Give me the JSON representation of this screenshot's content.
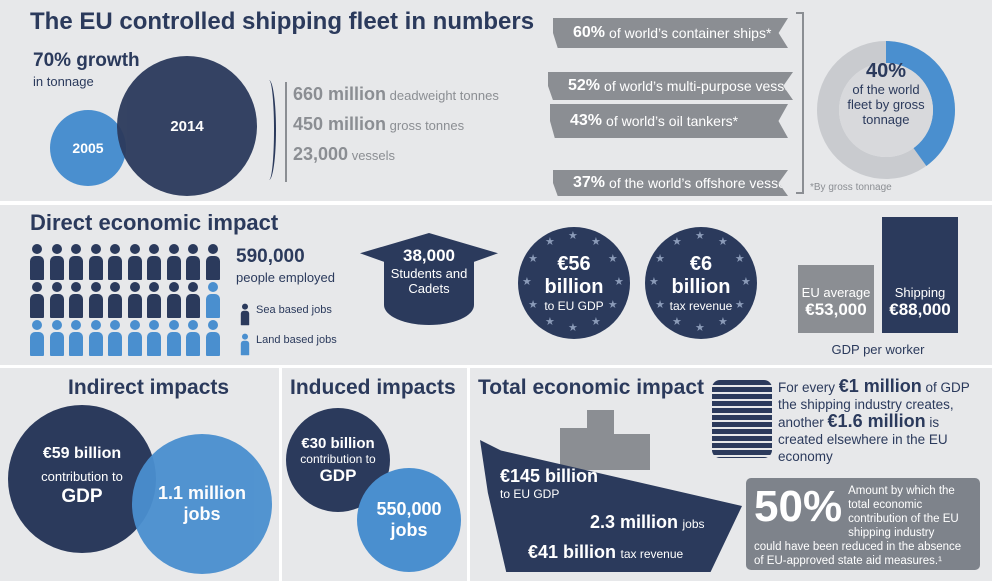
{
  "colors": {
    "navy": "#2b3a5c",
    "blue": "#4a8fcf",
    "gray": "#8b8e93",
    "background": "#e7e8ea"
  },
  "fleet": {
    "title": "The EU controlled shipping fleet in numbers",
    "growth": "70% growth",
    "growth_sub": "in tonnage",
    "year_old": "2005",
    "year_new": "2014",
    "stats": [
      {
        "value": "660 million",
        "label": "deadweight tonnes"
      },
      {
        "value": "450 million",
        "label": "gross tonnes"
      },
      {
        "value": "23,000",
        "label": "vessels"
      }
    ],
    "ships": [
      {
        "value": "60%",
        "label": "of world’s container ships*"
      },
      {
        "value": "52%",
        "label": "of world’s multi-purpose vessels*"
      },
      {
        "value": "43%",
        "label": "of world’s oil tankers*"
      },
      {
        "value": "37%",
        "label": "of the world’s offshore vessels*"
      }
    ],
    "donut": {
      "value": "40%",
      "label": "of the world fleet by gross tonnage",
      "fraction": 0.4
    },
    "footnote": "*By gross tonnage"
  },
  "direct": {
    "title": "Direct economic impact",
    "employed": "590,000",
    "employed_label": "people employed",
    "legend_sea": "Sea based jobs",
    "legend_land": "Land based jobs",
    "students": "38,000",
    "students_label": "Students and Cadets",
    "gdp": {
      "line1": "€56",
      "line2": "billion",
      "label": "to EU GDP"
    },
    "tax": {
      "line1": "€6",
      "line2": "billion",
      "label": "tax revenue"
    },
    "eu_avg": {
      "label": "EU average",
      "value": "€53,000"
    },
    "shipping": {
      "label": "Shipping",
      "value": "€88,000"
    },
    "gdp_worker": "GDP per worker"
  },
  "indirect": {
    "title": "Indirect impacts",
    "gdp_value": "€59 billion",
    "gdp_label": "contribution to",
    "gdp_word": "GDP",
    "jobs_value": "1.1 million",
    "jobs_word": "jobs"
  },
  "induced": {
    "title": "Induced impacts",
    "gdp_value": "€30 billion",
    "gdp_label": "contribution to",
    "gdp_word": "GDP",
    "jobs_value": "550,000",
    "jobs_word": "jobs"
  },
  "total": {
    "title": "Total economic impact",
    "gdp_value": "€145 billion",
    "gdp_label": "to EU GDP",
    "jobs_value": "2.3 million",
    "jobs_label": "jobs",
    "tax_value": "€41 billion",
    "tax_label": "tax revenue",
    "multiplier": {
      "p1": "For every ",
      "b1": "€1 million",
      "p2": " of GDP the shipping industry creates, another ",
      "b2": "€1.6 million",
      "p3": " is created elsewhere in the EU economy"
    },
    "aid_value": "50%",
    "aid_text_top": "Amount by which the total economic contribution of the EU shipping industry",
    "aid_text_bottom": "could have been reduced in the absence of EU-approved state aid measures.¹"
  }
}
